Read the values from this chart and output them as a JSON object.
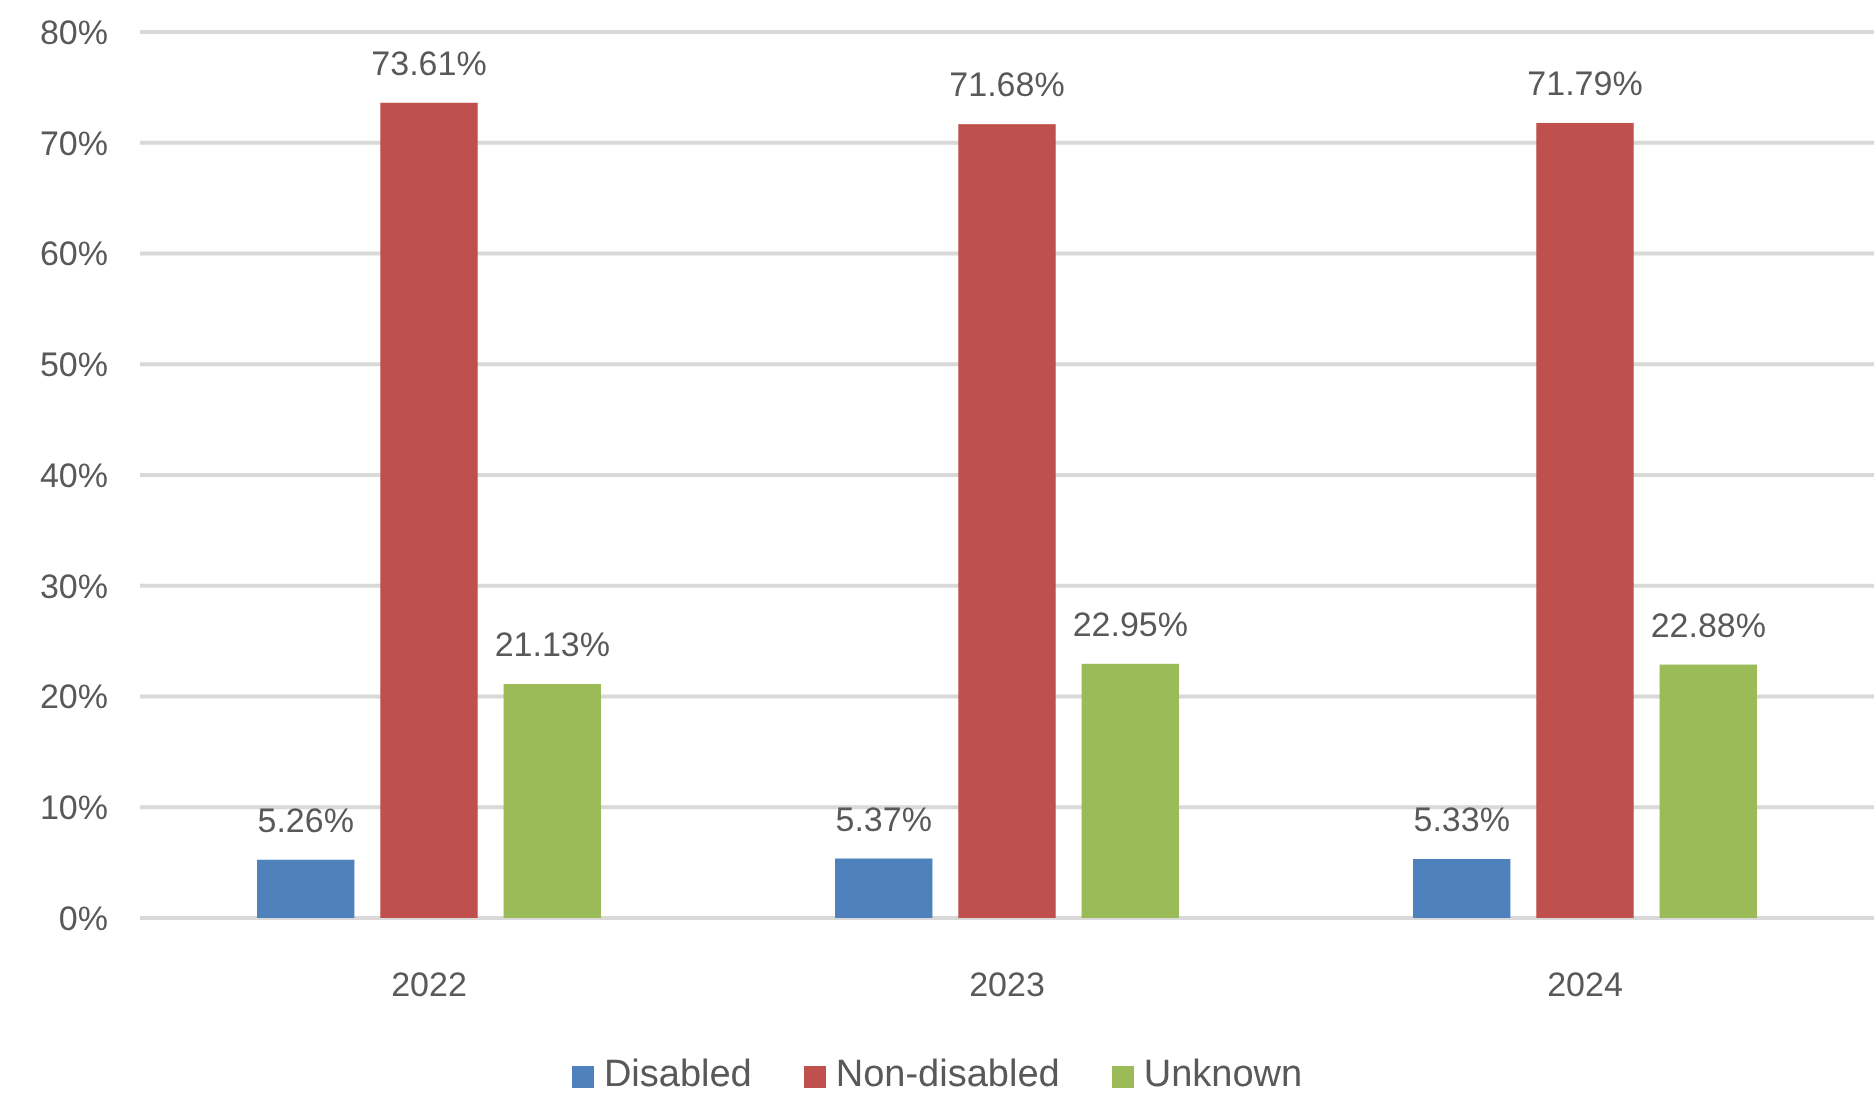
{
  "chart_data": {
    "type": "bar",
    "categories": [
      "2022",
      "2023",
      "2024"
    ],
    "series": [
      {
        "name": "Disabled",
        "color": "#4f81bd",
        "values": [
          5.26,
          5.37,
          5.33
        ],
        "value_labels": [
          "5.26%",
          "5.37%",
          "5.33%"
        ]
      },
      {
        "name": "Non-disabled",
        "color": "#c0504d",
        "values": [
          73.61,
          71.68,
          71.79
        ],
        "value_labels": [
          "73.61%",
          "71.68%",
          "71.79%"
        ]
      },
      {
        "name": "Unknown",
        "color": "#9bbb59",
        "values": [
          21.13,
          22.95,
          22.88
        ],
        "value_labels": [
          "21.13%",
          "22.95%",
          "22.88%"
        ]
      }
    ],
    "ylim": [
      0,
      80
    ],
    "yticks": [
      {
        "value": 0,
        "label": "0%"
      },
      {
        "value": 10,
        "label": "10%"
      },
      {
        "value": 20,
        "label": "20%"
      },
      {
        "value": 30,
        "label": "30%"
      },
      {
        "value": 40,
        "label": "40%"
      },
      {
        "value": 50,
        "label": "50%"
      },
      {
        "value": 60,
        "label": "60%"
      },
      {
        "value": 70,
        "label": "70%"
      },
      {
        "value": 80,
        "label": "80%"
      }
    ],
    "grid": "y",
    "legend": "bottom"
  }
}
